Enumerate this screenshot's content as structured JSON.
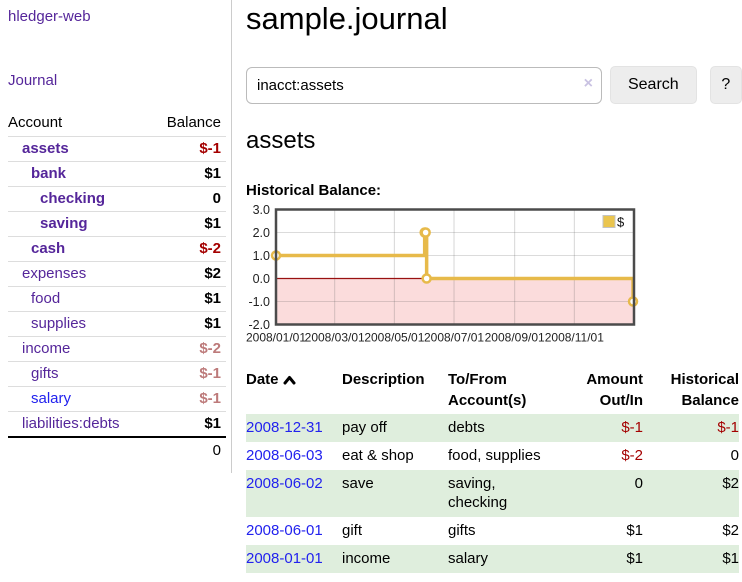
{
  "app": {
    "title": "hledger-web",
    "nav_journal": "Journal"
  },
  "sidebar": {
    "header": {
      "account": "Account",
      "balance": "Balance"
    },
    "rows": [
      {
        "label": "assets",
        "balance": "$-1",
        "depth": 1,
        "label_cls": "b",
        "bal_cls": "neg"
      },
      {
        "label": "bank",
        "balance": "$1",
        "depth": 2,
        "label_cls": "b",
        "bal_cls": ""
      },
      {
        "label": "checking",
        "balance": "0",
        "depth": 3,
        "label_cls": "b",
        "bal_cls": ""
      },
      {
        "label": "saving",
        "balance": "$1",
        "depth": 3,
        "label_cls": "b",
        "bal_cls": ""
      },
      {
        "label": "cash",
        "balance": "$-2",
        "depth": 2,
        "label_cls": "b",
        "bal_cls": "neg"
      },
      {
        "label": "expenses",
        "balance": "$2",
        "depth": 1,
        "label_cls": "",
        "bal_cls": ""
      },
      {
        "label": "food",
        "balance": "$1",
        "depth": 2,
        "label_cls": "",
        "bal_cls": ""
      },
      {
        "label": "supplies",
        "balance": "$1",
        "depth": 2,
        "label_cls": "",
        "bal_cls": ""
      },
      {
        "label": "income",
        "balance": "$-2",
        "depth": 1,
        "label_cls": "",
        "bal_cls": "dim-neg"
      },
      {
        "label": "gifts",
        "balance": "$-1",
        "depth": 2,
        "label_cls": "",
        "bal_cls": "dim-neg"
      },
      {
        "label": "salary",
        "balance": "$-1",
        "depth": 2,
        "label_cls": "blue",
        "bal_cls": "dim-neg"
      },
      {
        "label": "liabilities:debts",
        "balance": "$1",
        "depth": 1,
        "label_cls": "",
        "bal_cls": ""
      }
    ],
    "total": "0"
  },
  "header": {
    "journal_title": "sample.journal"
  },
  "search": {
    "value": "inacct:assets",
    "clear_icon": "×",
    "button_label": "Search",
    "help_label": "?"
  },
  "account_page": {
    "title": "assets",
    "chart_heading": "Historical Balance:"
  },
  "chart_data": {
    "type": "line",
    "title": "Historical Balance:",
    "x_range": [
      "2008-01-01",
      "2009-01-01"
    ],
    "x_ticks": [
      {
        "date": "2008-01-01",
        "label": "2008/01/01"
      },
      {
        "date": "2008-03-01",
        "label": "2008/03/01"
      },
      {
        "date": "2008-05-01",
        "label": "2008/05/01"
      },
      {
        "date": "2008-07-01",
        "label": "2008/07/01"
      },
      {
        "date": "2008-09-01",
        "label": "2008/09/01"
      },
      {
        "date": "2008-11-01",
        "label": "2008/11/01"
      }
    ],
    "y_ticks": [
      {
        "value": 3,
        "label": "3.0"
      },
      {
        "value": 2,
        "label": "2.0"
      },
      {
        "value": 1,
        "label": "1.0"
      },
      {
        "value": 0,
        "label": "0.0"
      },
      {
        "value": -1,
        "label": "-1.0"
      },
      {
        "value": -2,
        "label": "-2.0"
      }
    ],
    "ylim": [
      -2,
      3
    ],
    "grid": true,
    "legend": {
      "label": "$",
      "position": "top-right",
      "swatch_color": "#eac54f"
    },
    "colors": {
      "line": "#e7ba4a",
      "marker_fill": "#ffffff",
      "negative_region": "#fbdcdc",
      "zero_line": "#991111",
      "frame": "#4b4b4b"
    },
    "series": [
      {
        "name": "$",
        "step": true,
        "points": [
          [
            "2008-01-01",
            1
          ],
          [
            "2008-06-01",
            2
          ],
          [
            "2008-06-02",
            2
          ],
          [
            "2008-06-03",
            0
          ],
          [
            "2008-12-31",
            -1
          ]
        ]
      }
    ]
  },
  "register": {
    "columns": {
      "date": "Date",
      "description": "Description",
      "accounts": "To/From Account(s)",
      "amount": "Amount Out/In",
      "balance": "Historical Balance"
    },
    "rows": [
      {
        "date": "2008-12-31",
        "description": "pay off",
        "accounts": "debts",
        "amount": "$-1",
        "balance": "$-1",
        "amount_cls": "neg",
        "balance_cls": "neg",
        "row_cls": "green"
      },
      {
        "date": "2008-06-03",
        "description": "eat & shop",
        "accounts": "food, supplies",
        "amount": "$-2",
        "balance": "0",
        "amount_cls": "neg",
        "balance_cls": "",
        "row_cls": ""
      },
      {
        "date": "2008-06-02",
        "description": "save",
        "accounts": "saving, checking",
        "amount": "0",
        "balance": "$2",
        "amount_cls": "",
        "balance_cls": "",
        "row_cls": "green"
      },
      {
        "date": "2008-06-01",
        "description": "gift",
        "accounts": "gifts",
        "amount": "$1",
        "balance": "$2",
        "amount_cls": "",
        "balance_cls": "",
        "row_cls": ""
      },
      {
        "date": "2008-01-01",
        "description": "income",
        "accounts": "salary",
        "amount": "$1",
        "balance": "$1",
        "amount_cls": "",
        "balance_cls": "",
        "row_cls": "green"
      }
    ]
  }
}
